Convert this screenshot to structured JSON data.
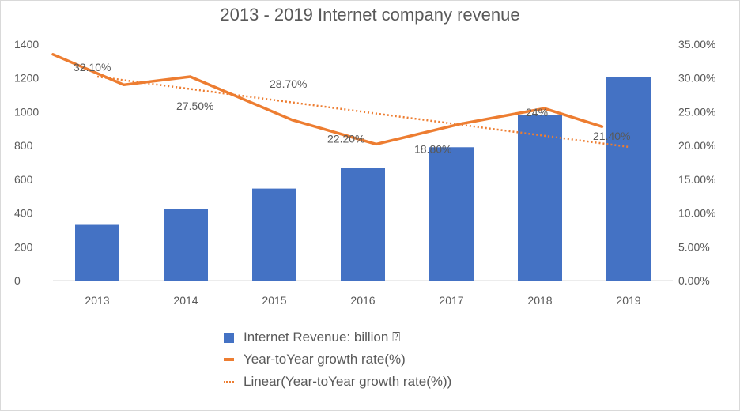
{
  "chart_data": {
    "type": "bar",
    "title": "2013 - 2019 Internet company revenue",
    "categories": [
      "2013",
      "2014",
      "2015",
      "2016",
      "2017",
      "2018",
      "2019"
    ],
    "ylim": [
      0,
      1400
    ],
    "y2lim": [
      0,
      35
    ],
    "y_ticks": [
      "0",
      "200",
      "400",
      "600",
      "800",
      "1000",
      "1200",
      "1400"
    ],
    "y2_ticks": [
      "0.00%",
      "5.00%",
      "10.00%",
      "15.00%",
      "20.00%",
      "25.00%",
      "30.00%",
      "35.00%"
    ],
    "series": [
      {
        "name": "Internet Revenue: billion ⍰",
        "type": "bar",
        "axis": "left",
        "color": "#4472c4",
        "values": [
          330,
          422,
          545,
          665,
          790,
          980,
          1205
        ]
      },
      {
        "name": "Year-toYear growth rate(%)",
        "type": "line",
        "axis": "right",
        "color": "#ed7d31",
        "x": [
          2012.5,
          2013.3,
          2014.05,
          2015.2,
          2016.15,
          2017.1,
          2018.05,
          2018.7
        ],
        "values": [
          33.5,
          29.0,
          30.2,
          23.8,
          20.2,
          23.2,
          25.5,
          22.8
        ],
        "data_labels": [
          {
            "x": 2013,
            "y": 32.1,
            "text": "32.10%"
          },
          {
            "x": 2014,
            "y": 27.5,
            "text": "27.50%"
          },
          {
            "x": 2015,
            "y": 28.7,
            "text": "28.70%"
          },
          {
            "x": 2016,
            "y": 22.2,
            "text": "22.20%"
          },
          {
            "x": 2017,
            "y": 18.8,
            "text": "18.80%"
          },
          {
            "x": 2018,
            "y": 24.0,
            "text": "24%"
          },
          {
            "x": 2019,
            "y": 21.4,
            "text": "21.40%"
          }
        ]
      },
      {
        "name": "Linear(Year-toYear growth rate(%))",
        "type": "trendline",
        "axis": "right",
        "color": "#ed7d31",
        "x": [
          2013,
          2019
        ],
        "values": [
          30.2,
          19.8
        ]
      }
    ],
    "legend_position": "bottom"
  }
}
